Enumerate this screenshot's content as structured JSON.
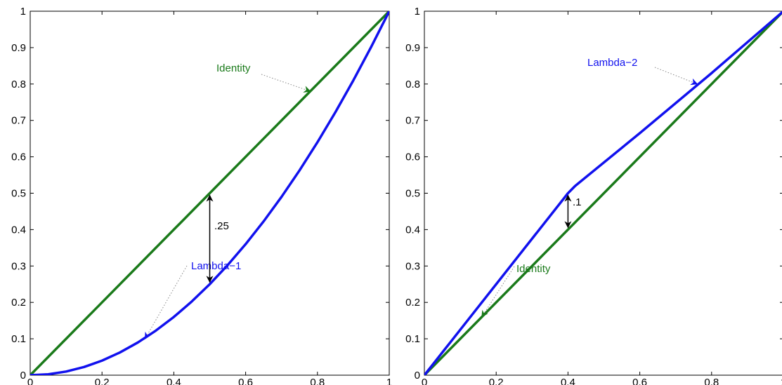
{
  "chart_data": [
    {
      "type": "line",
      "title": "",
      "xlabel": "",
      "ylabel": "",
      "xlim": [
        0,
        1
      ],
      "ylim": [
        0,
        1
      ],
      "xticks": [
        "0",
        "0.2",
        "0.4",
        "0.6",
        "0.8",
        "1"
      ],
      "yticks": [
        "0",
        "0.1",
        "0.2",
        "0.3",
        "0.4",
        "0.5",
        "0.6",
        "0.7",
        "0.8",
        "0.9",
        "1"
      ],
      "grid": false,
      "series": [
        {
          "name": "Identity",
          "color": "#1a7a1a",
          "x": [
            0,
            1
          ],
          "y": [
            0,
            1
          ]
        },
        {
          "name": "Lambda−1",
          "color": "#1111ee",
          "x": [
            0,
            0.05,
            0.1,
            0.15,
            0.2,
            0.25,
            0.3,
            0.35,
            0.4,
            0.45,
            0.5,
            0.55,
            0.6,
            0.65,
            0.7,
            0.75,
            0.8,
            0.85,
            0.9,
            0.95,
            1
          ],
          "y": [
            0,
            0.0025,
            0.01,
            0.0225,
            0.04,
            0.0625,
            0.09,
            0.1225,
            0.16,
            0.2025,
            0.25,
            0.3025,
            0.36,
            0.4225,
            0.49,
            0.5625,
            0.64,
            0.7225,
            0.81,
            0.9025,
            1
          ]
        }
      ],
      "annotations": [
        {
          "text": "Identity",
          "color": "#1a7a1a",
          "target_x": 0.78,
          "target_y": 0.78
        },
        {
          "text": "Lambda−1",
          "color": "#1111ee",
          "target_x": 0.32,
          "target_y": 0.1
        },
        {
          "text": ".25",
          "color": "#000000",
          "gap_x": 0.5,
          "gap_from": 0.25,
          "gap_to": 0.5
        }
      ]
    },
    {
      "type": "line",
      "title": "",
      "xlabel": "",
      "ylabel": "",
      "xlim": [
        0,
        1
      ],
      "ylim": [
        0,
        1
      ],
      "xticks": [
        "0",
        "0.2",
        "0.4",
        "0.6",
        "0.8",
        "1"
      ],
      "yticks": [
        "0",
        "0.1",
        "0.2",
        "0.3",
        "0.4",
        "0.5",
        "0.6",
        "0.7",
        "0.8",
        "0.9",
        "1"
      ],
      "grid": false,
      "series": [
        {
          "name": "Identity",
          "color": "#1a7a1a",
          "x": [
            0,
            1
          ],
          "y": [
            0,
            1
          ]
        },
        {
          "name": "Lambda−2",
          "color": "#1111ee",
          "x": [
            0,
            0.4,
            0.42,
            0.6,
            0.8,
            1
          ],
          "y": [
            0,
            0.5,
            0.52,
            0.665,
            0.83,
            1
          ]
        }
      ],
      "annotations": [
        {
          "text": "Lambda−2",
          "color": "#1111ee",
          "target_x": 0.76,
          "target_y": 0.8
        },
        {
          "text": "Identity",
          "color": "#1a7a1a",
          "target_x": 0.16,
          "target_y": 0.16
        },
        {
          "text": ".1",
          "color": "#000000",
          "gap_x": 0.4,
          "gap_from": 0.4,
          "gap_to": 0.5
        }
      ]
    }
  ]
}
